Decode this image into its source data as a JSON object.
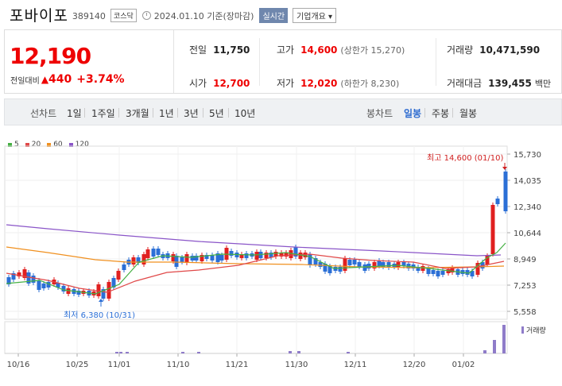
{
  "header": {
    "name": "포바이포",
    "code": "389140",
    "market": "코스닥",
    "date_label": "2024.01.10 기준(장마감)",
    "realtime": "실시간",
    "corp_info": "기업개요 ▾"
  },
  "summary": {
    "price": "12,190",
    "change_label": "전일대비",
    "change_value": "440",
    "change_pct": "+3.74%",
    "prev_close_label": "전일",
    "prev_close": "11,750",
    "high_label": "고가",
    "high": "14,600",
    "upper_limit": "(상한가 15,270)",
    "volume_label": "거래량",
    "volume": "10,471,590",
    "open_label": "시가",
    "open": "12,700",
    "low_label": "저가",
    "low": "12,020",
    "lower_limit": "(하한가 8,230)",
    "amount_label": "거래대금",
    "amount": "139,455",
    "amount_unit": "백만"
  },
  "toolbar": {
    "line_title": "선차트",
    "line_items": [
      "1일",
      "1주일",
      "3개월",
      "1년",
      "3년",
      "5년",
      "10년"
    ],
    "candle_title": "봉차트",
    "candle_items": [
      "일봉",
      "주봉",
      "월봉"
    ],
    "candle_active": "일봉"
  },
  "colors": {
    "up": "#e02020",
    "down": "#2b6fd6",
    "ma5": "#45b043",
    "ma20": "#e04848",
    "ma60": "#f0901f",
    "ma120": "#8a55c8",
    "volume": "#8f7cc9"
  },
  "chart_data": {
    "type": "candlestick",
    "legend": [
      "5",
      "20",
      "60",
      "120"
    ],
    "y_ticks": [
      "15,730",
      "14,035",
      "12,340",
      "10,644",
      "8,949",
      "7,253",
      "5,558"
    ],
    "x_ticks": [
      "10/16",
      "10/25",
      "11/01",
      "11/10",
      "11/21",
      "11/30",
      "12/11",
      "12/20",
      "01/02"
    ],
    "ylim": [
      5558,
      15730
    ],
    "high_annotation": "최고 14,600 (01/10)",
    "low_annotation": "최저 6,380 (10/31)",
    "volume_label": "거래량"
  }
}
